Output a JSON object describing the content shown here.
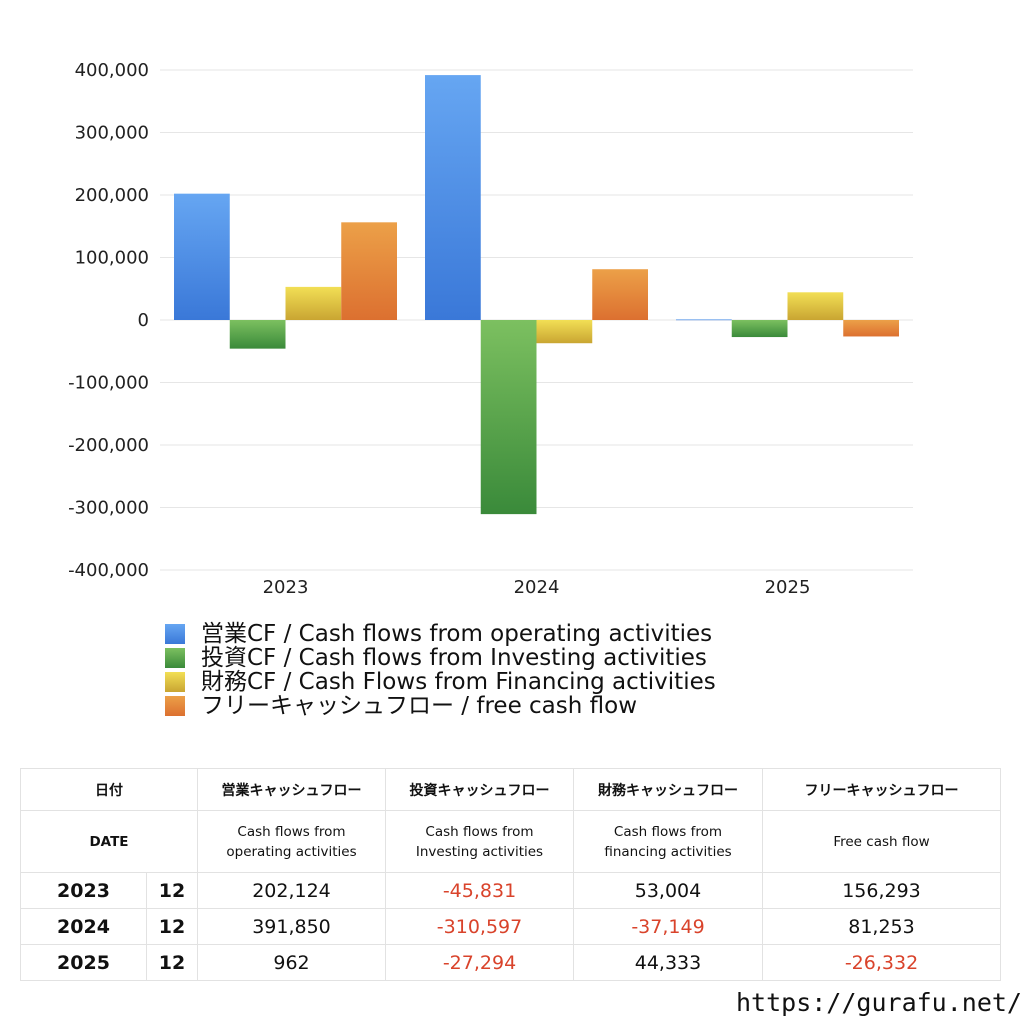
{
  "chart_data": {
    "type": "bar",
    "categories": [
      "2023",
      "2024",
      "2025"
    ],
    "ylim": [
      -400000,
      400000
    ],
    "yticks": [
      400000,
      300000,
      200000,
      100000,
      0,
      -100000,
      -200000,
      -300000,
      -400000
    ],
    "ytick_labels": [
      "400,000",
      "300,000",
      "200,000",
      "100,000",
      "0",
      "-100,000",
      "-200,000",
      "-300,000",
      "-400,000"
    ],
    "grid": true,
    "legend_position": "bottom",
    "series": [
      {
        "name": "営業CF / Cash flows from operating activities",
        "values": [
          202124,
          391850,
          962
        ],
        "color": "#3a78d8",
        "color_light": "#66a6f2"
      },
      {
        "name": "投資CF / Cash flows from Investing activities",
        "values": [
          -45831,
          -310597,
          -27294
        ],
        "color": "#3a8a3a",
        "color_light": "#7cc060"
      },
      {
        "name": "財務CF / Cash Flows from Financing activities",
        "values": [
          53004,
          -37149,
          44333
        ],
        "color": "#c9a532",
        "color_light": "#f2df55"
      },
      {
        "name": "フリーキャッシュフロー / free cash flow",
        "values": [
          156293,
          81253,
          -26332
        ],
        "color": "#dc7030",
        "color_light": "#eca048"
      }
    ]
  },
  "table": {
    "header1": [
      "日付",
      "営業キャッシュフロー",
      "投資キャッシュフロー",
      "財務キャッシュフロー",
      "フリーキャッシュフロー"
    ],
    "header2": [
      "DATE",
      "Cash flows from\noperating activities",
      "Cash flows from\nInvesting activities",
      "Cash flows from\nfinancing activities",
      "Free cash flow"
    ],
    "rows": [
      {
        "year": "2023",
        "month": "12",
        "op": "202,124",
        "inv": "-45,831",
        "fin": "53,004",
        "free": "156,293"
      },
      {
        "year": "2024",
        "month": "12",
        "op": "391,850",
        "inv": "-310,597",
        "fin": "-37,149",
        "free": "81,253"
      },
      {
        "year": "2025",
        "month": "12",
        "op": "962",
        "inv": "-27,294",
        "fin": "44,333",
        "free": "-26,332"
      }
    ]
  },
  "site_url": "https://gurafu.net/"
}
